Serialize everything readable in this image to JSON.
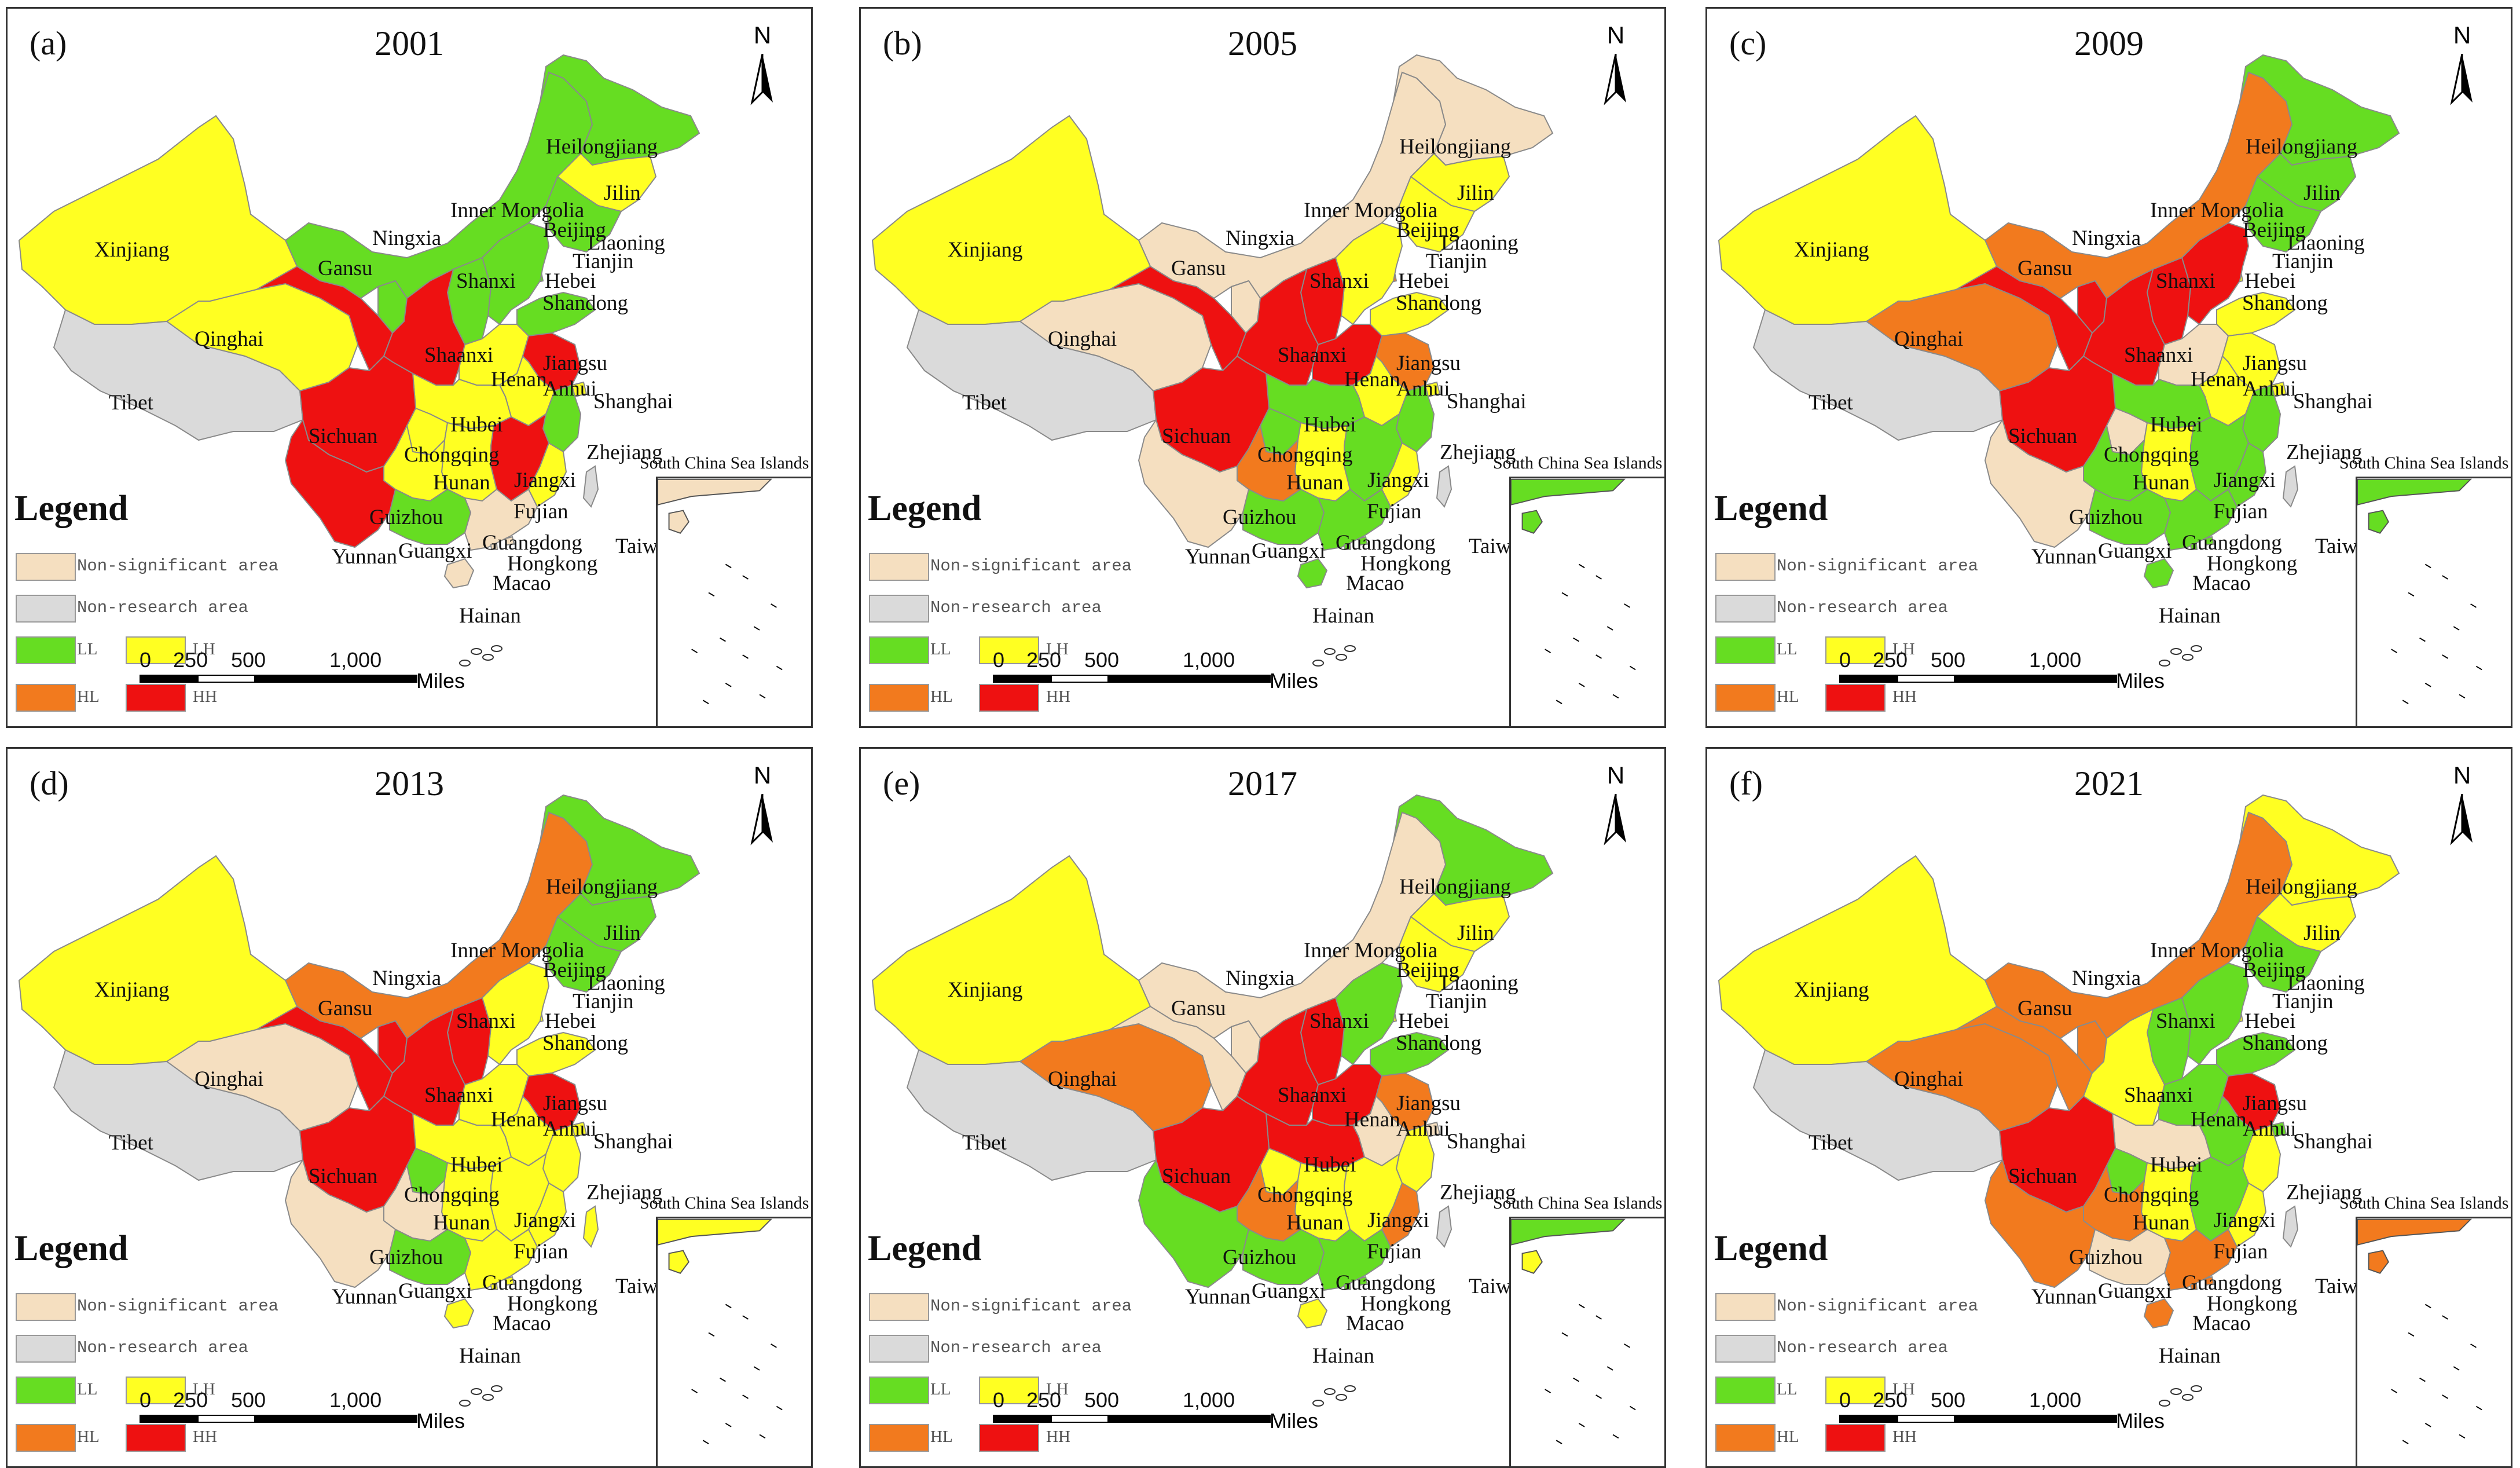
{
  "colors": {
    "LL": "#66dd22",
    "LH": "#ffff22",
    "HL": "#f27a1e",
    "HH": "#ee1111",
    "NS": "#f5dfc0",
    "NR": "#dadada"
  },
  "legend": {
    "title": "Legend",
    "items": [
      {
        "key": "NS",
        "label": "Non-significant area"
      },
      {
        "key": "NR",
        "label": "Non-research area"
      },
      {
        "key": "LL",
        "label": "LL"
      },
      {
        "key": "LH",
        "label": "LH"
      },
      {
        "key": "HL",
        "label": "HL"
      },
      {
        "key": "HH",
        "label": "HH"
      }
    ]
  },
  "north_label": "N",
  "inset_title": "South China Sea Islands",
  "scale_bar": {
    "ticks": [
      "0",
      "250",
      "500",
      "1,000"
    ],
    "unit": "Miles"
  },
  "province_labels": [
    "Heilongjiang",
    "Jilin",
    "Liaoning",
    "Inner Mongolia",
    "Beijing",
    "Tianjin",
    "Hebei",
    "Shandong",
    "Shanxi",
    "Ningxia",
    "Gansu",
    "Xinjiang",
    "Qinghai",
    "Tibet",
    "Shaanxi",
    "Henan",
    "Jiangsu",
    "Anhui",
    "Shanghai",
    "Hubei",
    "Sichuan",
    "Chongqing",
    "Zhejiang",
    "Hunan",
    "Jiangxi",
    "Fujian",
    "Guizhou",
    "Yunnan",
    "Guangxi",
    "Guangdong",
    "Hongkong",
    "Macao",
    "Hainan",
    "Taiwan"
  ],
  "panels": [
    {
      "label": "(a)",
      "year": "2001",
      "classes": {
        "Heilongjiang": "LL",
        "Jilin": "LH",
        "Liaoning": "LL",
        "Inner Mongolia": "LL",
        "Beijing": "LL",
        "Tianjin": "LL",
        "Hebei": "LL",
        "Shandong": "LL",
        "Shanxi": "LL",
        "Ningxia": "LL",
        "Gansu": "HH",
        "Xinjiang": "LH",
        "Qinghai": "LH",
        "Tibet": "NR",
        "Shaanxi": "HH",
        "Henan": "LH",
        "Jiangsu": "HH",
        "Anhui": "LH",
        "Shanghai": "LH",
        "Hubei": "LH",
        "Sichuan": "HH",
        "Chongqing": "LH",
        "Zhejiang": "LL",
        "Hunan": "LH",
        "Jiangxi": "HH",
        "Fujian": "LH",
        "Guizhou": "LH",
        "Yunnan": "HH",
        "Guangxi": "LL",
        "Guangdong": "NS",
        "Hongkong": "NS",
        "Macao": "NS",
        "Hainan": "NS",
        "Taiwan": "NR"
      }
    },
    {
      "label": "(b)",
      "year": "2005",
      "classes": {
        "Heilongjiang": "NS",
        "Jilin": "LH",
        "Liaoning": "LH",
        "Inner Mongolia": "NS",
        "Beijing": "NS",
        "Tianjin": "HL",
        "Hebei": "LH",
        "Shandong": "LH",
        "Shanxi": "HH",
        "Ningxia": "NS",
        "Gansu": "HH",
        "Xinjiang": "LH",
        "Qinghai": "NS",
        "Tibet": "NR",
        "Shaanxi": "HH",
        "Henan": "HH",
        "Jiangsu": "HL",
        "Anhui": "LH",
        "Shanghai": "LH",
        "Hubei": "LL",
        "Sichuan": "HH",
        "Chongqing": "LL",
        "Zhejiang": "LL",
        "Hunan": "LH",
        "Jiangxi": "LL",
        "Fujian": "LH",
        "Guizhou": "HL",
        "Yunnan": "NS",
        "Guangxi": "LL",
        "Guangdong": "LL",
        "Hongkong": "LL",
        "Macao": "LL",
        "Hainan": "LL",
        "Taiwan": "NR"
      }
    },
    {
      "label": "(c)",
      "year": "2009",
      "classes": {
        "Heilongjiang": "LL",
        "Jilin": "LL",
        "Liaoning": "LL",
        "Inner Mongolia": "HL",
        "Beijing": "LL",
        "Tianjin": "LH",
        "Hebei": "HH",
        "Shandong": "LH",
        "Shanxi": "HH",
        "Ningxia": "HH",
        "Gansu": "HH",
        "Xinjiang": "LH",
        "Qinghai": "HL",
        "Tibet": "NR",
        "Shaanxi": "HH",
        "Henan": "NS",
        "Jiangsu": "LH",
        "Anhui": "LH",
        "Shanghai": "LH",
        "Hubei": "LL",
        "Sichuan": "HH",
        "Chongqing": "NS",
        "Zhejiang": "LL",
        "Hunan": "LH",
        "Jiangxi": "LL",
        "Fujian": "LL",
        "Guizhou": "LL",
        "Yunnan": "NS",
        "Guangxi": "LL",
        "Guangdong": "LL",
        "Hongkong": "LL",
        "Macao": "LL",
        "Hainan": "LL",
        "Taiwan": "NR"
      }
    },
    {
      "label": "(d)",
      "year": "2013",
      "classes": {
        "Heilongjiang": "LL",
        "Jilin": "LL",
        "Liaoning": "LL",
        "Inner Mongolia": "HL",
        "Beijing": "NS",
        "Tianjin": "LH",
        "Hebei": "LH",
        "Shandong": "LH",
        "Shanxi": "HH",
        "Ningxia": "HH",
        "Gansu": "HH",
        "Xinjiang": "LH",
        "Qinghai": "NS",
        "Tibet": "NR",
        "Shaanxi": "HH",
        "Henan": "LH",
        "Jiangsu": "HH",
        "Anhui": "LH",
        "Shanghai": "LH",
        "Hubei": "LH",
        "Sichuan": "HH",
        "Chongqing": "LL",
        "Zhejiang": "LH",
        "Hunan": "LH",
        "Jiangxi": "LH",
        "Fujian": "LH",
        "Guizhou": "NS",
        "Yunnan": "NS",
        "Guangxi": "LL",
        "Guangdong": "LH",
        "Hongkong": "LH",
        "Macao": "LH",
        "Hainan": "LH",
        "Taiwan": "LH"
      }
    },
    {
      "label": "(e)",
      "year": "2017",
      "classes": {
        "Heilongjiang": "LL",
        "Jilin": "LH",
        "Liaoning": "LH",
        "Inner Mongolia": "NS",
        "Beijing": "LH",
        "Tianjin": "LH",
        "Hebei": "LL",
        "Shandong": "LL",
        "Shanxi": "HH",
        "Ningxia": "NS",
        "Gansu": "NS",
        "Xinjiang": "LH",
        "Qinghai": "HL",
        "Tibet": "NR",
        "Shaanxi": "HH",
        "Henan": "HH",
        "Jiangsu": "HL",
        "Anhui": "NS",
        "Shanghai": "NS",
        "Hubei": "HH",
        "Sichuan": "HH",
        "Chongqing": "LH",
        "Zhejiang": "LH",
        "Hunan": "LH",
        "Jiangxi": "LH",
        "Fujian": "HL",
        "Guizhou": "HL",
        "Yunnan": "LL",
        "Guangxi": "LL",
        "Guangdong": "LL",
        "Hongkong": "LL",
        "Macao": "LL",
        "Hainan": "LH",
        "Taiwan": "NR"
      }
    },
    {
      "label": "(f)",
      "year": "2021",
      "classes": {
        "Heilongjiang": "LH",
        "Jilin": "LH",
        "Liaoning": "LL",
        "Inner Mongolia": "HL",
        "Beijing": "LH",
        "Tianjin": "LH",
        "Hebei": "LL",
        "Shandong": "LL",
        "Shanxi": "LL",
        "Ningxia": "HL",
        "Gansu": "HL",
        "Xinjiang": "LH",
        "Qinghai": "HL",
        "Tibet": "NR",
        "Shaanxi": "LH",
        "Henan": "LL",
        "Jiangsu": "HH",
        "Anhui": "LL",
        "Shanghai": "LL",
        "Hubei": "NS",
        "Sichuan": "HH",
        "Chongqing": "LL",
        "Zhejiang": "LH",
        "Hunan": "LH",
        "Jiangxi": "LL",
        "Fujian": "LH",
        "Guizhou": "HL",
        "Yunnan": "HL",
        "Guangxi": "NS",
        "Guangdong": "HL",
        "Hongkong": "HL",
        "Macao": "HL",
        "Hainan": "HL",
        "Taiwan": "NR"
      }
    }
  ]
}
